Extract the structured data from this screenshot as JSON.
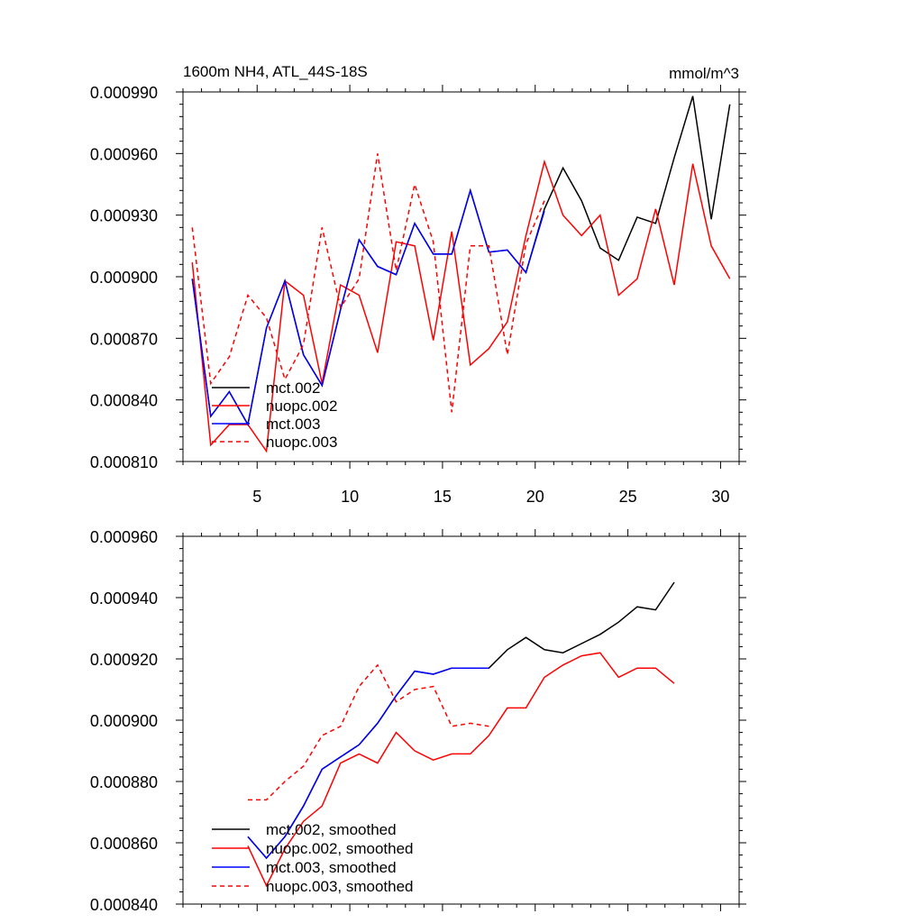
{
  "chart_data": [
    {
      "type": "line",
      "title": "1600m NH4, ATL_44S-18S",
      "units": "mmol/m^3",
      "xlabel": "",
      "ylabel": "",
      "xlim": [
        1,
        31
      ],
      "ylim": [
        0.00081,
        0.00099
      ],
      "x_ticks": [
        5,
        10,
        15,
        20,
        25,
        30
      ],
      "y_ticks": [
        0.00081,
        0.00084,
        0.00087,
        0.0009,
        0.00093,
        0.00096,
        0.00099
      ],
      "y_tick_labels": [
        "0.000810",
        "0.000840",
        "0.000870",
        "0.000900",
        "0.000930",
        "0.000960",
        "0.000990"
      ],
      "grid": false,
      "legend_position": "bottom-left",
      "series": [
        {
          "name": "mct.002",
          "color": "#000000",
          "dash": "solid",
          "x": [
            1.5,
            2.5,
            3.5,
            4.5,
            5.5,
            6.5,
            7.5,
            8.5,
            9.5,
            10.5,
            11.5,
            12.5,
            13.5,
            14.5,
            15.5,
            16.5,
            17.5,
            18.5,
            19.5,
            20.5,
            21.5,
            22.5,
            23.5,
            24.5,
            25.5,
            26.5,
            27.5,
            28.5,
            29.5,
            30.5
          ],
          "values": [
            0.000899,
            0.000832,
            0.000844,
            0.000828,
            0.000875,
            0.000898,
            0.000862,
            0.000847,
            0.000884,
            0.000918,
            0.000905,
            0.000901,
            0.000926,
            0.000911,
            0.000911,
            0.000942,
            0.000912,
            0.000913,
            0.000902,
            0.000933,
            0.000953,
            0.000937,
            0.000914,
            0.000908,
            0.000929,
            0.000926,
            0.000958,
            0.000988,
            0.000928,
            0.000984
          ]
        },
        {
          "name": "nuopc.002",
          "color": "#ff0000",
          "dash": "solid",
          "x": [
            1.5,
            2.5,
            3.5,
            4.5,
            5.5,
            6.5,
            7.5,
            8.5,
            9.5,
            10.5,
            11.5,
            12.5,
            13.5,
            14.5,
            15.5,
            16.5,
            17.5,
            18.5,
            19.5,
            20.5,
            21.5,
            22.5,
            23.5,
            24.5,
            25.5,
            26.5,
            27.5,
            28.5,
            29.5,
            30.5
          ],
          "values": [
            0.000907,
            0.000818,
            0.000828,
            0.000828,
            0.000815,
            0.000898,
            0.000891,
            0.000848,
            0.000896,
            0.000891,
            0.000863,
            0.000917,
            0.000915,
            0.000869,
            0.000922,
            0.000857,
            0.000865,
            0.000878,
            0.00092,
            0.000956,
            0.00093,
            0.00092,
            0.00093,
            0.000891,
            0.000899,
            0.000933,
            0.000896,
            0.000955,
            0.000915,
            0.000899
          ]
        },
        {
          "name": "mct.003",
          "color": "#0000ff",
          "dash": "solid",
          "x": [
            1.5,
            2.5,
            3.5,
            4.5,
            5.5,
            6.5,
            7.5,
            8.5,
            9.5,
            10.5,
            11.5,
            12.5,
            13.5,
            14.5,
            15.5,
            16.5,
            17.5,
            18.5,
            19.5,
            20.5
          ],
          "values": [
            0.000899,
            0.000832,
            0.000844,
            0.000828,
            0.000875,
            0.000898,
            0.000862,
            0.000847,
            0.000884,
            0.000918,
            0.000905,
            0.000901,
            0.000926,
            0.000911,
            0.000911,
            0.000942,
            0.000912,
            0.000913,
            0.000902,
            0.000932
          ]
        },
        {
          "name": "nuopc.003",
          "color": "#ff0000",
          "dash": "dashed",
          "x": [
            1.5,
            2.5,
            3.5,
            4.5,
            5.5,
            6.5,
            7.5,
            8.5,
            9.5,
            10.5,
            11.5,
            12.5,
            13.5,
            14.5,
            15.5,
            16.5,
            17.5,
            18.5,
            19.5,
            20.5
          ],
          "values": [
            0.000924,
            0.000848,
            0.000861,
            0.000891,
            0.00088,
            0.00085,
            0.000867,
            0.000924,
            0.000885,
            0.000899,
            0.00096,
            0.000903,
            0.000945,
            0.000917,
            0.000834,
            0.000915,
            0.000915,
            0.000862,
            0.000916,
            0.000937
          ]
        }
      ]
    },
    {
      "type": "line",
      "title": "",
      "xlabel": "",
      "ylabel": "",
      "xlim": [
        1,
        31
      ],
      "ylim": [
        0.00084,
        0.00096
      ],
      "y_ticks": [
        0.00084,
        0.00086,
        0.00088,
        0.0009,
        0.00092,
        0.00094,
        0.00096
      ],
      "y_tick_labels": [
        "0.000840",
        "0.000860",
        "0.000880",
        "0.000900",
        "0.000920",
        "0.000940",
        "0.000960"
      ],
      "grid": false,
      "legend_position": "bottom-left",
      "series": [
        {
          "name": "mct.002, smoothed",
          "color": "#000000",
          "dash": "solid",
          "x": [
            4.5,
            5.5,
            6.5,
            7.5,
            8.5,
            9.5,
            10.5,
            11.5,
            12.5,
            13.5,
            14.5,
            15.5,
            16.5,
            17.5,
            18.5,
            19.5,
            20.5,
            21.5,
            22.5,
            23.5,
            24.5,
            25.5,
            26.5,
            27.5
          ],
          "values": [
            0.000862,
            0.000855,
            0.000862,
            0.000872,
            0.000884,
            0.000888,
            0.000892,
            0.000899,
            0.000908,
            0.000916,
            0.000915,
            0.000917,
            0.000917,
            0.000917,
            0.000923,
            0.000927,
            0.000923,
            0.000922,
            0.000925,
            0.000928,
            0.000932,
            0.000937,
            0.000936,
            0.000945
          ]
        },
        {
          "name": "nuopc.002, smoothed",
          "color": "#ff0000",
          "dash": "solid",
          "x": [
            4.5,
            5.5,
            6.5,
            7.5,
            8.5,
            9.5,
            10.5,
            11.5,
            12.5,
            13.5,
            14.5,
            15.5,
            16.5,
            17.5,
            18.5,
            19.5,
            20.5,
            21.5,
            22.5,
            23.5,
            24.5,
            25.5,
            26.5,
            27.5
          ],
          "values": [
            0.000859,
            0.000846,
            0.000858,
            0.000867,
            0.000872,
            0.000886,
            0.000889,
            0.000886,
            0.000896,
            0.00089,
            0.000887,
            0.000889,
            0.000889,
            0.000895,
            0.000904,
            0.000904,
            0.000914,
            0.000918,
            0.000921,
            0.000922,
            0.000914,
            0.000917,
            0.000917,
            0.000912
          ]
        },
        {
          "name": "mct.003, smoothed",
          "color": "#0000ff",
          "dash": "solid",
          "x": [
            4.5,
            5.5,
            6.5,
            7.5,
            8.5,
            9.5,
            10.5,
            11.5,
            12.5,
            13.5,
            14.5,
            15.5,
            16.5,
            17.5
          ],
          "values": [
            0.000862,
            0.000855,
            0.000862,
            0.000872,
            0.000884,
            0.000888,
            0.000892,
            0.000899,
            0.000908,
            0.000916,
            0.000915,
            0.000917,
            0.000917,
            0.000917
          ]
        },
        {
          "name": "nuopc.003, smoothed",
          "color": "#ff0000",
          "dash": "dashed",
          "x": [
            4.5,
            5.5,
            6.5,
            7.5,
            8.5,
            9.5,
            10.5,
            11.5,
            12.5,
            13.5,
            14.5,
            15.5,
            16.5,
            17.5
          ],
          "values": [
            0.000874,
            0.000874,
            0.00088,
            0.000885,
            0.000895,
            0.000898,
            0.000911,
            0.000918,
            0.000906,
            0.00091,
            0.000911,
            0.000898,
            0.000899,
            0.000898
          ]
        }
      ]
    }
  ]
}
